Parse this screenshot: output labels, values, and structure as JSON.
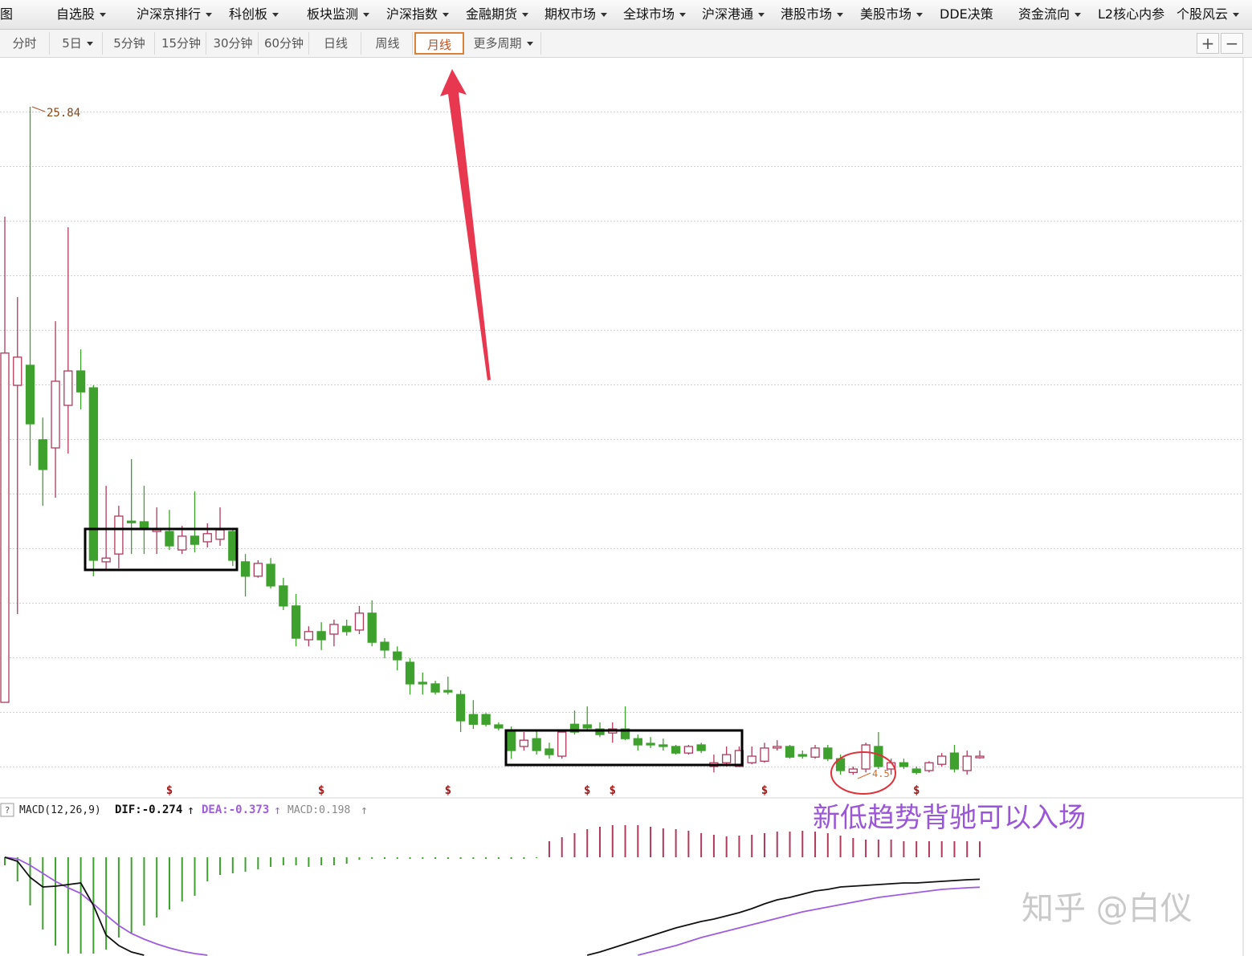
{
  "toolbar": {
    "items": [
      "图",
      "自选股",
      "沪深京排行",
      "科创板",
      "板块监测",
      "沪深指数",
      "金融期货",
      "期权市场",
      "全球市场",
      "沪深港通",
      "港股市场",
      "美股市场",
      "DDE决策",
      "资金流向",
      "L2核心内参",
      "个股风云"
    ]
  },
  "periods": {
    "items": [
      "分时",
      "5日",
      "5分钟",
      "15分钟",
      "30分钟",
      "60分钟",
      "日线",
      "周线",
      "月线",
      "更多周期"
    ],
    "active": "月线"
  },
  "annotation": "新低趋势背驰可以入场",
  "watermark": "知乎 @白仪",
  "chart_data": {
    "type": "candlestick",
    "ylim": [
      3.86,
      27.2
    ],
    "up_color": "#b03a5b",
    "down_color": "#3ea12d",
    "open": [
      6.81,
      16.94,
      17.58,
      15.2,
      14.94,
      16.3,
      17.4,
      16.86,
      11.3,
      11.55,
      12.6,
      12.58,
      12.27,
      12.27,
      11.68,
      12.12,
      11.94,
      12.02,
      12.27,
      11.3,
      10.84,
      11.22,
      10.53,
      9.89,
      8.81,
      9.07,
      8.99,
      9.24,
      9.12,
      9.66,
      8.73,
      8.42,
      8.09,
      7.45,
      7.4,
      7.19,
      7.06,
      6.42,
      6.42,
      6.09,
      5.91,
      5.4,
      5.65,
      5.32,
      5.09,
      6.11,
      6.09,
      5.96,
      5.83,
      5.96,
      5.65,
      5.5,
      5.45,
      5.4,
      5.19,
      5.45,
      4.76,
      4.88,
      4.76,
      4.88,
      4.93,
      5.35,
      5.4,
      5.14,
      5.06,
      5.35,
      5.01,
      4.57,
      4.68,
      5.4,
      4.68,
      4.88,
      4.68,
      4.63,
      4.83,
      5.19,
      4.63,
      5.04
    ],
    "high": [
      22.33,
      19.76,
      25.84,
      15.91,
      18.99,
      21.99,
      18.09,
      16.94,
      13.73,
      13.09,
      14.58,
      13.73,
      13.04,
      12.96,
      12.45,
      13.55,
      12.53,
      13.04,
      12.37,
      11.55,
      11.35,
      11.42,
      10.79,
      10.27,
      9.24,
      9.37,
      9.45,
      9.45,
      9.89,
      10.07,
      8.86,
      8.6,
      8.22,
      7.76,
      7.5,
      7.63,
      7.19,
      6.88,
      6.47,
      6.17,
      6.04,
      5.86,
      5.91,
      5.52,
      5.91,
      6.55,
      6.68,
      6.17,
      6.17,
      6.68,
      5.78,
      5.7,
      5.65,
      5.45,
      5.45,
      5.52,
      5.14,
      5.4,
      5.4,
      5.4,
      5.52,
      5.6,
      5.45,
      5.27,
      5.45,
      5.45,
      5.14,
      4.76,
      5.52,
      5.86,
      5.01,
      5.01,
      4.76,
      4.93,
      5.19,
      5.45,
      5.27,
      5.27
    ],
    "low": [
      6.81,
      9.63,
      14.37,
      13.09,
      13.35,
      14.76,
      16.17,
      10.84,
      11.04,
      11.09,
      11.55,
      11.55,
      11.55,
      11.68,
      11.55,
      11.6,
      11.76,
      11.81,
      11.17,
      10.19,
      10.79,
      10.45,
      9.76,
      8.6,
      8.6,
      8.48,
      8.6,
      8.94,
      8.99,
      8.6,
      8.22,
      7.83,
      7.06,
      7.06,
      7.06,
      7.06,
      5.86,
      5.96,
      6.04,
      5.91,
      5.01,
      5.27,
      5.14,
      5.01,
      5.01,
      5.78,
      5.91,
      5.7,
      5.52,
      5.6,
      5.27,
      5.35,
      5.27,
      5.14,
      5.14,
      5.19,
      4.57,
      4.76,
      4.76,
      4.83,
      4.88,
      5.27,
      5.01,
      5.01,
      5.01,
      4.93,
      4.5,
      4.5,
      4.57,
      4.68,
      4.5,
      4.68,
      4.5,
      4.57,
      4.76,
      4.57,
      4.5,
      5.01
    ],
    "close": [
      17.97,
      17.84,
      15.71,
      14.25,
      17.07,
      17.4,
      16.73,
      11.35,
      11.42,
      12.76,
      12.55,
      12.37,
      12.32,
      11.81,
      12.12,
      11.86,
      12.2,
      12.32,
      11.35,
      10.84,
      11.25,
      10.53,
      9.89,
      8.86,
      9.07,
      8.81,
      9.3,
      9.07,
      9.66,
      8.73,
      8.48,
      8.17,
      7.4,
      7.4,
      7.14,
      7.14,
      6.22,
      6.11,
      6.11,
      5.99,
      5.27,
      5.6,
      5.27,
      5.14,
      5.86,
      5.86,
      5.99,
      5.78,
      5.96,
      5.65,
      5.45,
      5.45,
      5.4,
      5.19,
      5.4,
      5.27,
      4.88,
      5.14,
      5.27,
      5.09,
      5.35,
      5.4,
      5.06,
      5.09,
      5.35,
      5.01,
      4.63,
      4.68,
      5.45,
      4.76,
      4.88,
      4.76,
      4.57,
      4.88,
      5.09,
      4.68,
      5.09,
      5.09
    ],
    "signals": [
      null,
      null,
      null,
      null,
      null,
      null,
      null,
      null,
      null,
      null,
      null,
      null,
      null,
      "$",
      null,
      null,
      null,
      null,
      null,
      null,
      null,
      null,
      null,
      null,
      null,
      "$",
      null,
      null,
      null,
      null,
      null,
      null,
      null,
      null,
      null,
      "$",
      null,
      null,
      null,
      null,
      null,
      null,
      null,
      null,
      null,
      null,
      "$",
      null,
      "$",
      null,
      null,
      null,
      null,
      null,
      null,
      null,
      null,
      null,
      null,
      null,
      "$",
      null,
      null,
      null,
      null,
      null,
      null,
      null,
      null,
      null,
      null,
      null,
      "$",
      null,
      null,
      null,
      null,
      null
    ],
    "macd_title": "MACD(12,26,9)",
    "dif_label": "DIF:",
    "dea_label": "DEA:",
    "macd_label": "MACD:",
    "macd_ylim": [
      -1.23,
      0.46
    ],
    "dif_color": "#111111",
    "dea_color": "#a05ce0",
    "macd": [
      -0.1,
      -0.3,
      -0.6,
      -0.9,
      -1.1,
      -1.2,
      -1.2,
      -1.2,
      -1.15,
      -1.0,
      -0.95,
      -0.85,
      -0.75,
      -0.65,
      -0.55,
      -0.48,
      -0.3,
      -0.22,
      -0.2,
      -0.18,
      -0.15,
      -0.12,
      -0.1,
      -0.1,
      -0.12,
      -0.1,
      -0.1,
      -0.08,
      -0.03,
      -0.02,
      -0.02,
      -0.02,
      -0.02,
      -0.02,
      -0.02,
      -0.02,
      -0.02,
      -0.02,
      -0.02,
      -0.02,
      -0.02,
      -0.02,
      -0.01,
      0.2,
      0.25,
      0.3,
      0.35,
      0.38,
      0.4,
      0.4,
      0.4,
      0.38,
      0.36,
      0.35,
      0.33,
      0.3,
      0.28,
      0.26,
      0.27,
      0.28,
      0.3,
      0.32,
      0.32,
      0.33,
      0.32,
      0.3,
      0.27,
      0.24,
      0.22,
      0.22,
      0.22,
      0.2,
      0.2,
      0.2,
      0.2,
      0.2,
      0.2,
      0.198
    ],
    "dif": [
      0,
      -0.05,
      -0.25,
      -0.37,
      -0.36,
      -0.34,
      -0.32,
      -0.6,
      -0.97,
      -1.1,
      -1.18,
      -1.22,
      null,
      null,
      null,
      null,
      null,
      null,
      null,
      null,
      null,
      null,
      null,
      null,
      null,
      null,
      null,
      null,
      null,
      null,
      null,
      null,
      null,
      null,
      null,
      null,
      null,
      null,
      null,
      null,
      null,
      null,
      null,
      null,
      null,
      null,
      -1.22,
      -1.18,
      -1.13,
      -1.08,
      -1.03,
      -0.98,
      -0.93,
      -0.88,
      -0.84,
      -0.8,
      -0.77,
      -0.73,
      -0.69,
      -0.64,
      -0.58,
      -0.53,
      -0.5,
      -0.46,
      -0.42,
      -0.4,
      -0.37,
      -0.36,
      -0.35,
      -0.34,
      -0.33,
      -0.32,
      -0.32,
      -0.31,
      -0.3,
      -0.29,
      -0.28,
      -0.274
    ],
    "dea": [
      0,
      -0.02,
      -0.1,
      -0.2,
      -0.3,
      -0.38,
      -0.45,
      -0.58,
      -0.72,
      -0.85,
      -0.95,
      -1.02,
      -1.08,
      -1.13,
      -1.17,
      -1.2,
      -1.22,
      null,
      null,
      null,
      null,
      null,
      null,
      null,
      null,
      null,
      null,
      null,
      null,
      null,
      null,
      null,
      null,
      null,
      null,
      null,
      null,
      null,
      null,
      null,
      null,
      null,
      null,
      null,
      null,
      null,
      null,
      null,
      null,
      null,
      -1.22,
      -1.18,
      -1.14,
      -1.1,
      -1.05,
      -1.0,
      -0.96,
      -0.92,
      -0.88,
      -0.84,
      -0.8,
      -0.76,
      -0.72,
      -0.68,
      -0.65,
      -0.62,
      -0.59,
      -0.56,
      -0.53,
      -0.5,
      -0.48,
      -0.46,
      -0.44,
      -0.42,
      -0.4,
      -0.39,
      -0.38,
      -0.373
    ]
  }
}
